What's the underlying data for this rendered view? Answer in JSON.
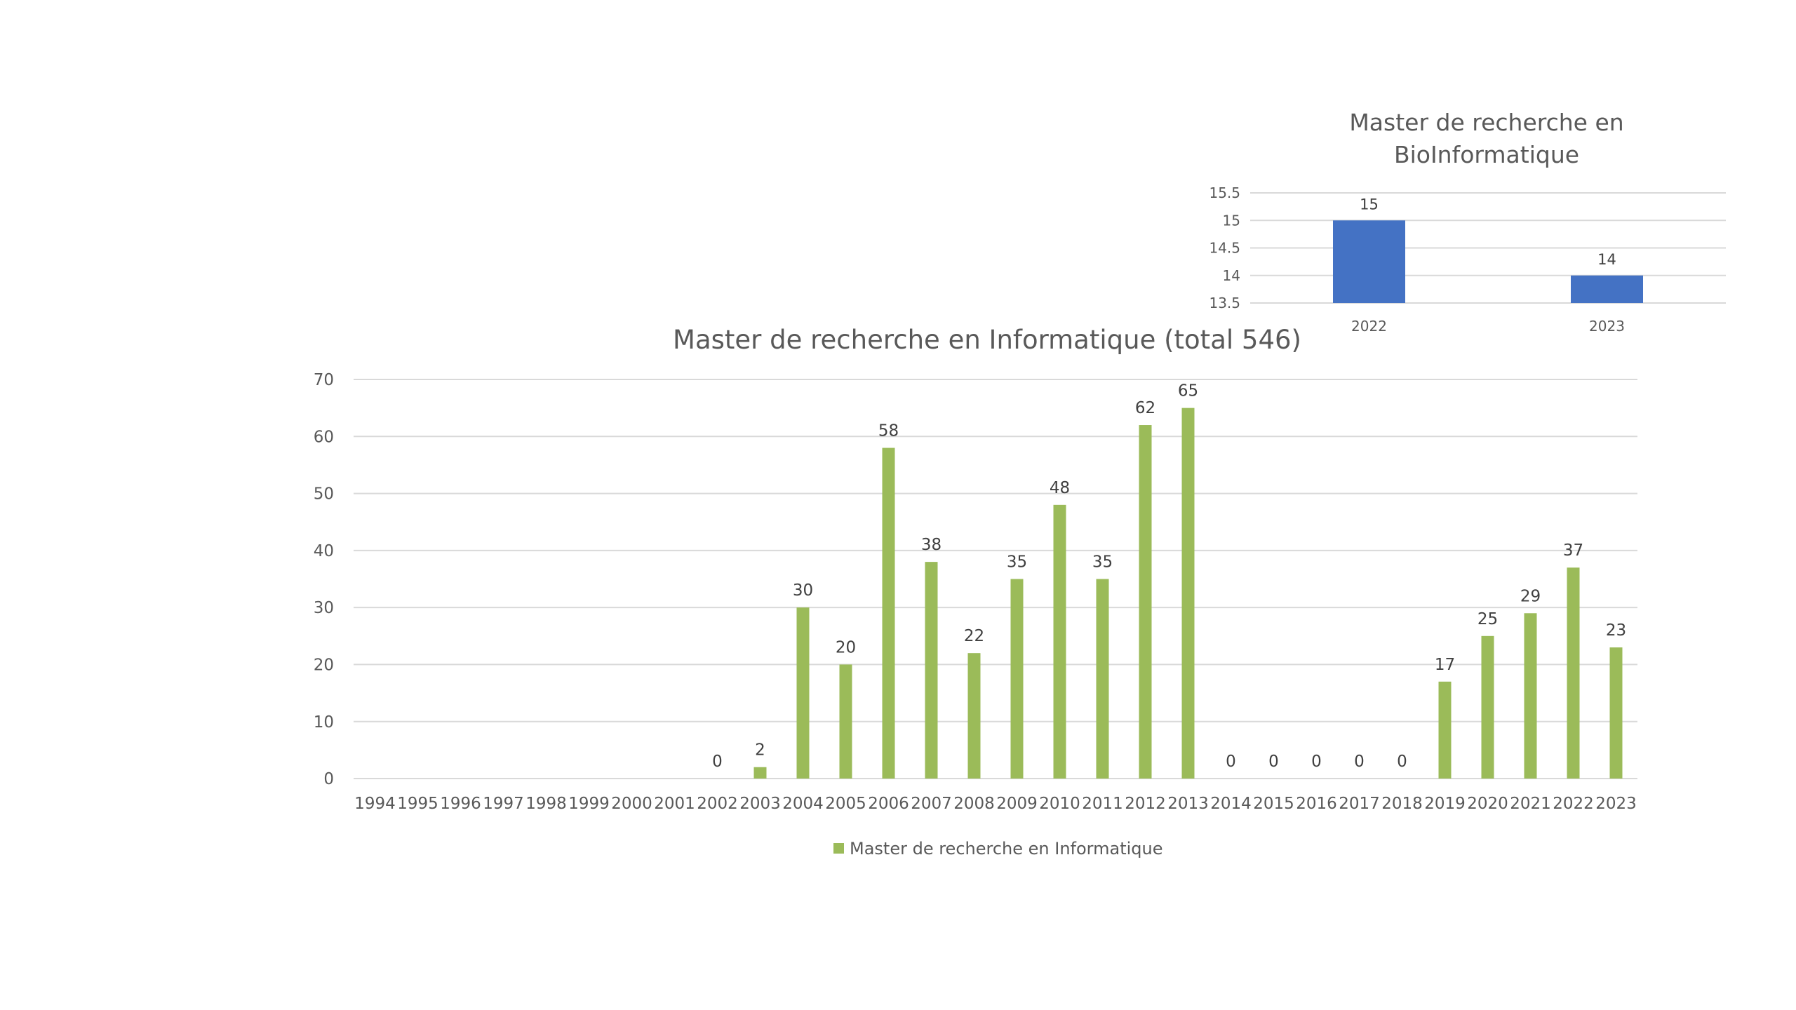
{
  "colors": {
    "informatique_bar": "#9bbb59",
    "bioinformatique_bar": "#4472c4",
    "gridline": "#d9d9d9",
    "text": "#595959"
  },
  "chart_data": [
    {
      "type": "bar",
      "title_line1": "Master de recherche en",
      "title_line2": "BioInformatique",
      "categories": [
        "2022",
        "2023"
      ],
      "series": [
        {
          "values": [
            15,
            14
          ]
        }
      ],
      "ylim": [
        13.5,
        15.5
      ],
      "yticks": [
        "13.5",
        "14",
        "14.5",
        "15",
        "15.5"
      ],
      "grid": true,
      "legend": "none",
      "data_labels": true
    },
    {
      "type": "bar",
      "title": "Master de recherche en Informatique (total 546)",
      "categories": [
        "1994",
        "1995",
        "1996",
        "1997",
        "1998",
        "1999",
        "2000",
        "2001",
        "2002",
        "2003",
        "2004",
        "2005",
        "2006",
        "2007",
        "2008",
        "2009",
        "2010",
        "2011",
        "2012",
        "2013",
        "2014",
        "2015",
        "2016",
        "2017",
        "2018",
        "2019",
        "2020",
        "2021",
        "2022",
        "2023"
      ],
      "series": [
        {
          "name": "Master de recherche en Informatique",
          "values": [
            null,
            null,
            null,
            null,
            null,
            null,
            null,
            null,
            0,
            2,
            30,
            20,
            58,
            38,
            22,
            35,
            48,
            35,
            62,
            65,
            0,
            0,
            0,
            0,
            0,
            17,
            25,
            29,
            37,
            23
          ]
        }
      ],
      "ylim": [
        0,
        70
      ],
      "yticks": [
        "0",
        "10",
        "20",
        "30",
        "40",
        "50",
        "60",
        "70"
      ],
      "grid": true,
      "legend": "bottom",
      "data_labels": true
    }
  ]
}
